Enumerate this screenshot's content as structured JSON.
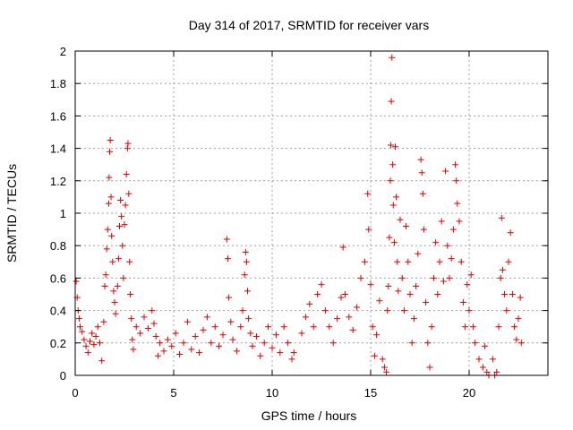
{
  "chart_data": {
    "type": "scatter",
    "title": "Day 314 of 2017, SRMTID for receiver vars",
    "xlabel": "GPS time / hours",
    "ylabel": "SRMTID / TECUs",
    "xlim": [
      0,
      24
    ],
    "ylim": [
      0,
      2
    ],
    "xticks": [
      0,
      5,
      10,
      15,
      20
    ],
    "yticks": [
      0,
      0.2,
      0.4,
      0.6,
      0.8,
      1,
      1.2,
      1.4,
      1.6,
      1.8,
      2
    ],
    "xtick_labels": [
      "0",
      "5",
      "10",
      "15",
      "20"
    ],
    "ytick_labels": [
      "0",
      "0.2",
      "0.4",
      "0.6",
      "0.8",
      "1",
      "1.2",
      "1.4",
      "1.6",
      "1.8",
      "2"
    ],
    "grid": true,
    "marker": "+",
    "color": "#e00000",
    "series": [
      {
        "name": "SRMTID",
        "points": [
          [
            0.05,
            0.58
          ],
          [
            0.1,
            0.48
          ],
          [
            0.15,
            0.4
          ],
          [
            0.2,
            0.35
          ],
          [
            0.25,
            0.3
          ],
          [
            0.35,
            0.27
          ],
          [
            0.45,
            0.22
          ],
          [
            0.55,
            0.18
          ],
          [
            0.65,
            0.14
          ],
          [
            0.75,
            0.21
          ],
          [
            0.85,
            0.26
          ],
          [
            0.95,
            0.19
          ],
          [
            1.05,
            0.24
          ],
          [
            1.15,
            0.3
          ],
          [
            1.25,
            0.2
          ],
          [
            1.35,
            0.09
          ],
          [
            1.45,
            0.33
          ],
          [
            1.5,
            0.55
          ],
          [
            1.55,
            0.62
          ],
          [
            1.6,
            0.78
          ],
          [
            1.65,
            0.9
          ],
          [
            1.7,
            1.06
          ],
          [
            1.72,
            1.22
          ],
          [
            1.75,
            1.38
          ],
          [
            1.78,
            1.45
          ],
          [
            1.82,
            1.1
          ],
          [
            1.85,
            0.86
          ],
          [
            1.9,
            0.7
          ],
          [
            1.95,
            0.52
          ],
          [
            2.0,
            0.45
          ],
          [
            2.05,
            0.38
          ],
          [
            2.15,
            0.55
          ],
          [
            2.2,
            0.72
          ],
          [
            2.25,
            0.92
          ],
          [
            2.3,
            1.08
          ],
          [
            2.35,
            0.98
          ],
          [
            2.4,
            0.8
          ],
          [
            2.45,
            0.6
          ],
          [
            2.5,
            0.93
          ],
          [
            2.55,
            1.05
          ],
          [
            2.6,
            1.24
          ],
          [
            2.65,
            1.4
          ],
          [
            2.68,
            1.43
          ],
          [
            2.72,
            1.12
          ],
          [
            2.76,
            0.7
          ],
          [
            2.8,
            0.5
          ],
          [
            2.85,
            0.35
          ],
          [
            2.9,
            0.22
          ],
          [
            2.95,
            0.16
          ],
          [
            3.1,
            0.3
          ],
          [
            3.3,
            0.26
          ],
          [
            3.5,
            0.36
          ],
          [
            3.7,
            0.29
          ],
          [
            3.9,
            0.4
          ],
          [
            4.0,
            0.32
          ],
          [
            4.1,
            0.24
          ],
          [
            4.2,
            0.12
          ],
          [
            4.3,
            0.2
          ],
          [
            4.5,
            0.15
          ],
          [
            4.7,
            0.22
          ],
          [
            4.9,
            0.18
          ],
          [
            5.1,
            0.26
          ],
          [
            5.3,
            0.13
          ],
          [
            5.5,
            0.2
          ],
          [
            5.7,
            0.33
          ],
          [
            5.9,
            0.16
          ],
          [
            6.1,
            0.24
          ],
          [
            6.3,
            0.14
          ],
          [
            6.5,
            0.28
          ],
          [
            6.7,
            0.36
          ],
          [
            6.9,
            0.2
          ],
          [
            7.1,
            0.3
          ],
          [
            7.3,
            0.18
          ],
          [
            7.5,
            0.25
          ],
          [
            7.7,
            0.84
          ],
          [
            7.75,
            0.72
          ],
          [
            7.8,
            0.48
          ],
          [
            7.9,
            0.33
          ],
          [
            8.0,
            0.22
          ],
          [
            8.2,
            0.15
          ],
          [
            8.4,
            0.3
          ],
          [
            8.5,
            0.4
          ],
          [
            8.6,
            0.62
          ],
          [
            8.65,
            0.76
          ],
          [
            8.7,
            0.7
          ],
          [
            8.75,
            0.52
          ],
          [
            8.8,
            0.35
          ],
          [
            8.9,
            0.26
          ],
          [
            9.0,
            0.18
          ],
          [
            9.2,
            0.24
          ],
          [
            9.4,
            0.12
          ],
          [
            9.6,
            0.2
          ],
          [
            9.8,
            0.3
          ],
          [
            10.0,
            0.17
          ],
          [
            10.2,
            0.25
          ],
          [
            10.4,
            0.14
          ],
          [
            10.6,
            0.3
          ],
          [
            10.8,
            0.2
          ],
          [
            11.0,
            0.1
          ],
          [
            11.1,
            0.14
          ],
          [
            11.5,
            0.26
          ],
          [
            11.7,
            0.36
          ],
          [
            11.9,
            0.44
          ],
          [
            12.1,
            0.3
          ],
          [
            12.3,
            0.5
          ],
          [
            12.5,
            0.56
          ],
          [
            12.7,
            0.4
          ],
          [
            12.9,
            0.3
          ],
          [
            13.1,
            0.2
          ],
          [
            13.3,
            0.35
          ],
          [
            13.5,
            0.48
          ],
          [
            13.6,
            0.79
          ],
          [
            13.7,
            0.5
          ],
          [
            13.9,
            0.36
          ],
          [
            14.1,
            0.28
          ],
          [
            14.3,
            0.42
          ],
          [
            14.5,
            0.6
          ],
          [
            14.7,
            0.7
          ],
          [
            14.85,
            1.12
          ],
          [
            14.9,
            0.9
          ],
          [
            15.0,
            0.56
          ],
          [
            15.1,
            0.3
          ],
          [
            15.2,
            0.12
          ],
          [
            15.3,
            0.25
          ],
          [
            15.45,
            0.46
          ],
          [
            15.6,
            0.1
          ],
          [
            15.7,
            0.05
          ],
          [
            15.8,
            0.02
          ],
          [
            15.85,
            0.4
          ],
          [
            15.9,
            0.55
          ],
          [
            15.95,
            0.85
          ],
          [
            16.0,
            1.2
          ],
          [
            16.02,
            1.42
          ],
          [
            16.05,
            1.69
          ],
          [
            16.08,
            1.96
          ],
          [
            16.12,
            1.3
          ],
          [
            16.15,
            1.05
          ],
          [
            16.2,
            0.82
          ],
          [
            16.25,
            1.41
          ],
          [
            16.3,
            1.1
          ],
          [
            16.35,
            0.7
          ],
          [
            16.4,
            0.52
          ],
          [
            16.5,
            0.96
          ],
          [
            16.6,
            0.6
          ],
          [
            16.7,
            0.4
          ],
          [
            16.8,
            0.92
          ],
          [
            16.9,
            0.7
          ],
          [
            17.0,
            0.5
          ],
          [
            17.1,
            0.2
          ],
          [
            17.2,
            0.35
          ],
          [
            17.3,
            0.55
          ],
          [
            17.4,
            0.75
          ],
          [
            17.55,
            1.33
          ],
          [
            17.6,
            1.25
          ],
          [
            17.65,
            1.12
          ],
          [
            17.7,
            0.9
          ],
          [
            17.8,
            0.45
          ],
          [
            17.9,
            0.2
          ],
          [
            18.0,
            0.05
          ],
          [
            18.1,
            0.3
          ],
          [
            18.2,
            0.6
          ],
          [
            18.3,
            0.82
          ],
          [
            18.4,
            0.5
          ],
          [
            18.5,
            0.7
          ],
          [
            18.6,
            0.95
          ],
          [
            18.7,
            0.58
          ],
          [
            18.8,
            1.26
          ],
          [
            18.9,
            0.8
          ],
          [
            19.0,
            0.6
          ],
          [
            19.1,
            0.72
          ],
          [
            19.2,
            0.9
          ],
          [
            19.3,
            1.3
          ],
          [
            19.35,
            1.2
          ],
          [
            19.4,
            1.06
          ],
          [
            19.5,
            0.95
          ],
          [
            19.6,
            0.7
          ],
          [
            19.7,
            0.45
          ],
          [
            19.8,
            0.3
          ],
          [
            19.9,
            0.56
          ],
          [
            20.0,
            0.4
          ],
          [
            20.1,
            0.62
          ],
          [
            20.2,
            0.3
          ],
          [
            20.3,
            0.2
          ],
          [
            20.5,
            0.1
          ],
          [
            20.7,
            0.05
          ],
          [
            20.8,
            0.18
          ],
          [
            20.9,
            0.02
          ],
          [
            21.0,
            0.0
          ],
          [
            21.2,
            0.1
          ],
          [
            21.3,
            0.0
          ],
          [
            21.4,
            0.02
          ],
          [
            21.5,
            0.3
          ],
          [
            21.6,
            0.6
          ],
          [
            21.65,
            0.97
          ],
          [
            21.7,
            0.65
          ],
          [
            21.8,
            0.5
          ],
          [
            21.9,
            0.4
          ],
          [
            22.0,
            0.7
          ],
          [
            22.1,
            0.88
          ],
          [
            22.2,
            0.5
          ],
          [
            22.3,
            0.3
          ],
          [
            22.4,
            0.22
          ],
          [
            22.5,
            0.35
          ],
          [
            22.6,
            0.48
          ],
          [
            22.65,
            0.2
          ]
        ]
      }
    ]
  }
}
